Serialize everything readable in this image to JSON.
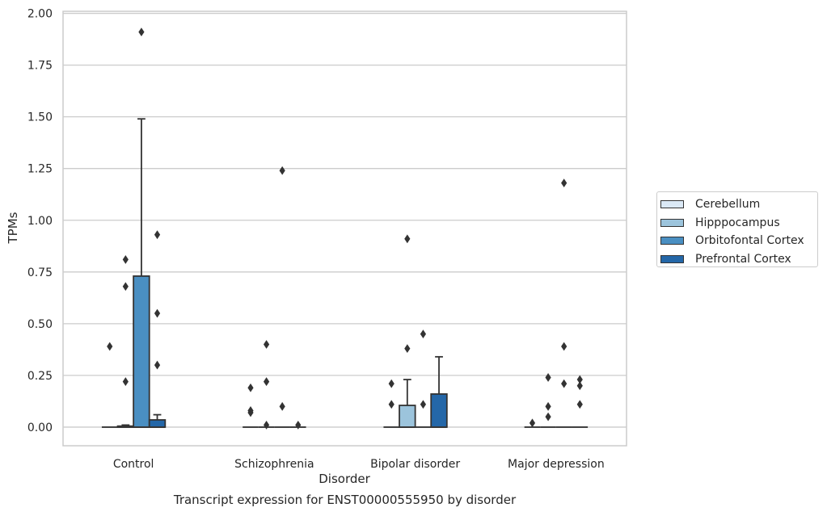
{
  "chart_data": {
    "type": "box",
    "caption": "Transcript expression for ENST00000555950 by disorder",
    "xlabel": "Disorder",
    "ylabel": "TPMs",
    "ylim": [
      -0.09,
      2.01
    ],
    "yticks": [
      "0.00",
      "0.25",
      "0.50",
      "0.75",
      "1.00",
      "1.25",
      "1.50",
      "1.75",
      "2.00"
    ],
    "categories": [
      "Control",
      "Schizophrenia",
      "Bipolar disorder",
      "Major depression"
    ],
    "grid": true,
    "legend_position": "right",
    "series": [
      {
        "name": "Cerebellum",
        "color": "#dbe9f6",
        "boxes": [
          {
            "q1": 0,
            "median": 0,
            "q3": 0,
            "whisker_low": 0,
            "whisker_high": 0,
            "outliers": [
              0.39
            ]
          },
          {
            "q1": 0,
            "median": 0,
            "q3": 0,
            "whisker_low": 0,
            "whisker_high": 0,
            "outliers": [
              0.19,
              0.08,
              0.07
            ]
          },
          {
            "q1": 0,
            "median": 0,
            "q3": 0,
            "whisker_low": 0,
            "whisker_high": 0,
            "outliers": [
              0.21,
              0.11
            ]
          },
          {
            "q1": 0,
            "median": 0,
            "q3": 0,
            "whisker_low": 0,
            "whisker_high": 0,
            "outliers": [
              0.02
            ]
          }
        ]
      },
      {
        "name": "Hipppocampus",
        "color": "#9cc4dc",
        "boxes": [
          {
            "q1": 0,
            "median": 0,
            "q3": 0.005,
            "whisker_low": 0,
            "whisker_high": 0.01,
            "outliers": [
              0.81,
              0.68,
              0.22
            ]
          },
          {
            "q1": 0,
            "median": 0,
            "q3": 0,
            "whisker_low": 0,
            "whisker_high": 0,
            "outliers": [
              0.4,
              0.22,
              0.01
            ]
          },
          {
            "q1": 0,
            "median": 0,
            "q3": 0.105,
            "whisker_low": 0,
            "whisker_high": 0.23,
            "outliers": [
              0.91,
              0.38
            ]
          },
          {
            "q1": 0,
            "median": 0,
            "q3": 0,
            "whisker_low": 0,
            "whisker_high": 0,
            "outliers": [
              0.24,
              0.1,
              0.05
            ]
          }
        ]
      },
      {
        "name": "Orbitofontal Cortex",
        "color": "#4a8fc2",
        "boxes": [
          {
            "q1": 0,
            "median": 0,
            "q3": 0.73,
            "whisker_low": 0,
            "whisker_high": 1.49,
            "outliers": [
              1.91
            ]
          },
          {
            "q1": 0,
            "median": 0,
            "q3": 0,
            "whisker_low": 0,
            "whisker_high": 0,
            "outliers": [
              1.24,
              0.1
            ]
          },
          {
            "q1": 0,
            "median": 0,
            "q3": 0,
            "whisker_low": 0,
            "whisker_high": 0,
            "outliers": [
              0.45,
              0.11
            ]
          },
          {
            "q1": 0,
            "median": 0,
            "q3": 0,
            "whisker_low": 0,
            "whisker_high": 0,
            "outliers": [
              1.18,
              0.39,
              0.21
            ]
          }
        ]
      },
      {
        "name": "Prefrontal Cortex",
        "color": "#2467a8",
        "boxes": [
          {
            "q1": 0,
            "median": 0,
            "q3": 0.035,
            "whisker_low": 0,
            "whisker_high": 0.06,
            "outliers": [
              0.93,
              0.55,
              0.3
            ]
          },
          {
            "q1": 0,
            "median": 0,
            "q3": 0,
            "whisker_low": 0,
            "whisker_high": 0,
            "outliers": [
              0.01
            ]
          },
          {
            "q1": 0,
            "median": 0,
            "q3": 0.16,
            "whisker_low": 0,
            "whisker_high": 0.34,
            "outliers": []
          },
          {
            "q1": 0,
            "median": 0,
            "q3": 0,
            "whisker_low": 0,
            "whisker_high": 0,
            "outliers": [
              0.23,
              0.2,
              0.11
            ]
          }
        ]
      }
    ]
  }
}
